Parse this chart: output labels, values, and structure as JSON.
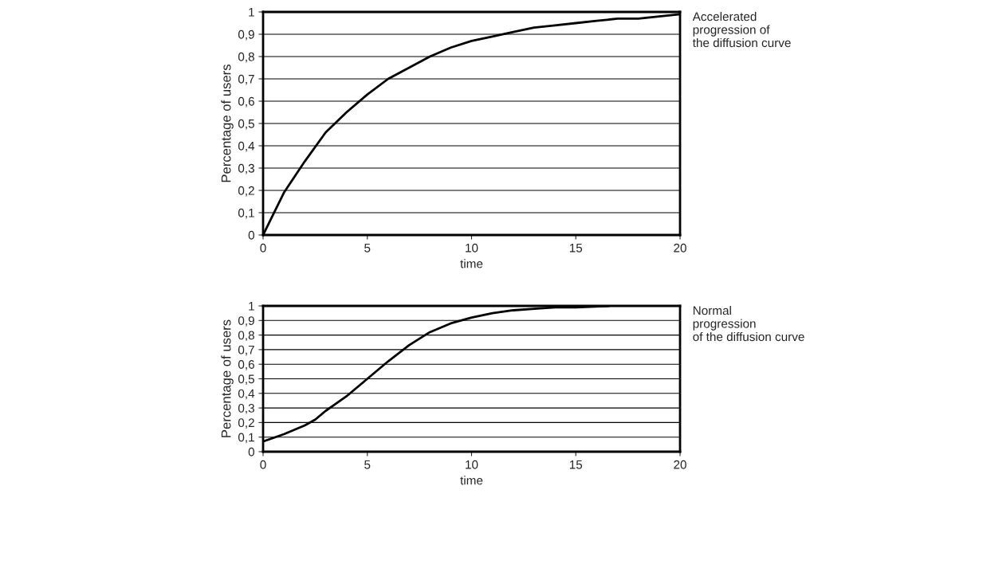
{
  "chart_data": [
    {
      "type": "line",
      "xlabel": "time",
      "ylabel": "Percentage of users",
      "annotations": [
        "Accelerated\nprogression of\nthe diffusion curve"
      ],
      "x": [
        0,
        1,
        2,
        3,
        4,
        5,
        6,
        7,
        8,
        9,
        10,
        11,
        12,
        13,
        14,
        15,
        16,
        17,
        18,
        19,
        20
      ],
      "series": [
        {
          "color": "#000000",
          "values": [
            0,
            0.19,
            0.33,
            0.46,
            0.55,
            0.63,
            0.7,
            0.75,
            0.8,
            0.84,
            0.87,
            0.89,
            0.91,
            0.93,
            0.94,
            0.95,
            0.96,
            0.97,
            0.97,
            0.98,
            0.99
          ]
        }
      ],
      "xlim": [
        0,
        20
      ],
      "xticks": [
        0,
        5,
        10,
        15,
        20
      ],
      "ylim": [
        0,
        1
      ],
      "yticks": [
        0,
        {
          "value": 0.1,
          "label": "0,1"
        },
        {
          "value": 0.2,
          "label": "0,2"
        },
        {
          "value": 0.3,
          "label": "0,3"
        },
        {
          "value": 0.4,
          "label": "0,4"
        },
        {
          "value": 0.5,
          "label": "0,5"
        },
        {
          "value": 0.6,
          "label": "0,6"
        },
        {
          "value": 0.7,
          "label": "0,7"
        },
        {
          "value": 0.8,
          "label": "0,8"
        },
        {
          "value": 0.9,
          "label": "0,9"
        },
        1
      ],
      "grid": "y",
      "marker": "none",
      "line_style": "solid"
    },
    {
      "type": "line",
      "xlabel": "time",
      "ylabel": "Percentage of users",
      "annotations": [
        "Normal\nprogression\nof the diffusion curve"
      ],
      "x": [
        0,
        1,
        2,
        2.5,
        3,
        4,
        5,
        6,
        7,
        8,
        9,
        10,
        11,
        12,
        13,
        14,
        15,
        16.6
      ],
      "series": [
        {
          "color": "#000000",
          "values": [
            0.07,
            0.12,
            0.18,
            0.22,
            0.28,
            0.38,
            0.5,
            0.62,
            0.73,
            0.82,
            0.88,
            0.92,
            0.95,
            0.97,
            0.98,
            0.99,
            0.99,
            1.0
          ]
        }
      ],
      "xlim": [
        0,
        20
      ],
      "xticks": [
        0,
        5,
        10,
        15,
        20
      ],
      "ylim": [
        0,
        1
      ],
      "yticks": [
        0,
        {
          "value": 0.1,
          "label": "0,1"
        },
        {
          "value": 0.2,
          "label": "0,2"
        },
        {
          "value": 0.3,
          "label": "0,3"
        },
        {
          "value": 0.4,
          "label": "0,4"
        },
        {
          "value": 0.5,
          "label": "0,5"
        },
        {
          "value": 0.6,
          "label": "0,6"
        },
        {
          "value": 0.7,
          "label": "0,7"
        },
        {
          "value": 0.8,
          "label": "0,8"
        },
        {
          "value": 0.9,
          "label": "0,9"
        },
        1
      ],
      "grid": "y",
      "marker": "none",
      "line_style": "solid"
    }
  ]
}
